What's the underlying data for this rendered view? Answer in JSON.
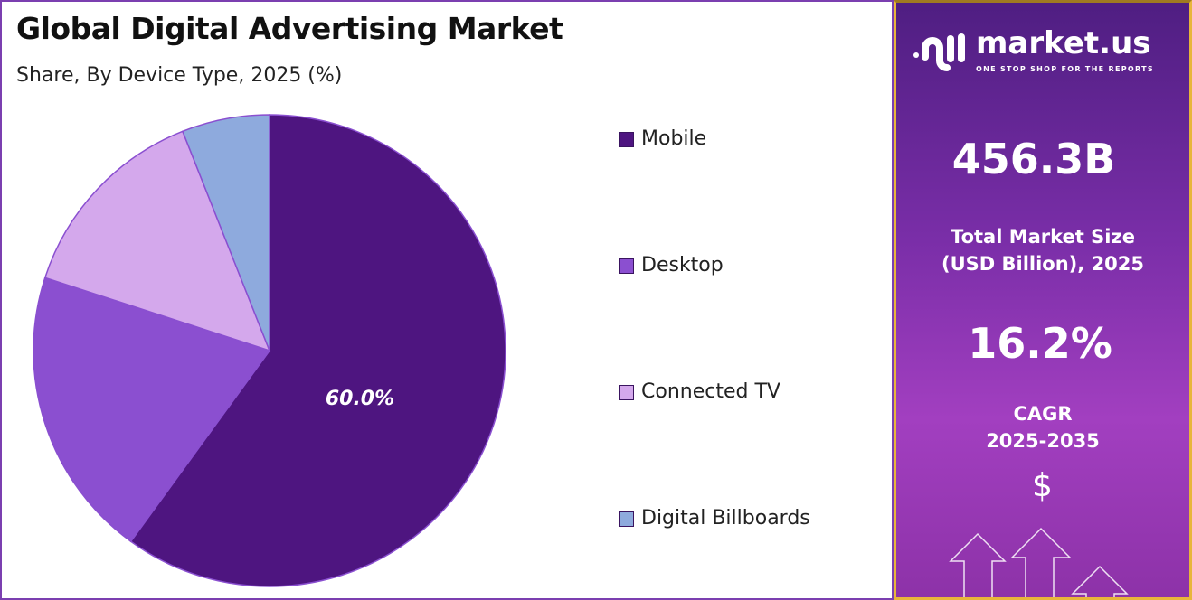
{
  "title": "Global Digital Advertising Market",
  "subtitle": "Share, By Device Type, 2025 (%)",
  "chart_data": {
    "type": "pie",
    "title": "Global Digital Advertising Market",
    "subtitle": "Share, By Device Type, 2025 (%)",
    "categories": [
      "Mobile",
      "Desktop",
      "Connected TV",
      "Digital Billboards"
    ],
    "values": [
      60.0,
      20.0,
      14.0,
      6.0
    ],
    "colors": [
      "#4e1580",
      "#8b4fd0",
      "#d4a8ec",
      "#8eaadd"
    ],
    "data_labels": [
      "60.0%",
      "",
      "",
      ""
    ],
    "legend": "right"
  },
  "panel": {
    "brand": "market.us",
    "tagline": "ONE STOP SHOP FOR THE REPORTS",
    "market_size": "456.3B",
    "market_size_label_1": "Total Market Size",
    "market_size_label_2": "(USD Billion), 2025",
    "cagr": "16.2%",
    "cagr_label_1": "CAGR",
    "cagr_label_2": "2025-2035",
    "dollar": "$"
  }
}
